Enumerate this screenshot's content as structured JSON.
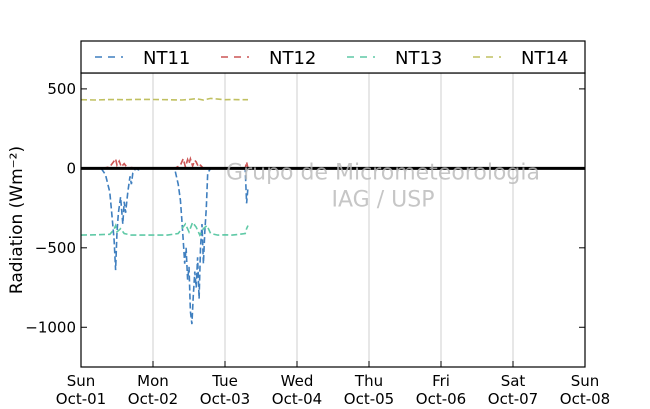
{
  "chart_data": {
    "type": "line",
    "ylabel": "Radiation (Wm⁻²)",
    "xlabel": "",
    "ylim": [
      -1250,
      600
    ],
    "xlim": [
      0,
      7
    ],
    "yticks": [
      500,
      0,
      -500,
      -1000
    ],
    "ytick_labels": [
      "500",
      "0",
      "−500",
      "−1000"
    ],
    "xticks": [
      0,
      1,
      2,
      3,
      4,
      5,
      6,
      7
    ],
    "xtick_labels": [
      [
        "Sun",
        "Oct-01"
      ],
      [
        "Mon",
        "Oct-02"
      ],
      [
        "Tue",
        "Oct-03"
      ],
      [
        "Wed",
        "Oct-04"
      ],
      [
        "Thu",
        "Oct-05"
      ],
      [
        "Fri",
        "Oct-06"
      ],
      [
        "Sat",
        "Oct-07"
      ],
      [
        "Sun",
        "Oct-08"
      ]
    ],
    "grid": "vertical",
    "legend_position": "top",
    "watermark": [
      "Grupo de Micrometeorologia",
      "IAG / USP"
    ],
    "series": [
      {
        "name": "NT11",
        "color": "#3f7fbf",
        "x": [
          0.28,
          0.34,
          0.4,
          0.43,
          0.46,
          0.48,
          0.5,
          0.52,
          0.55,
          0.58,
          0.6,
          0.62,
          0.65,
          0.68,
          0.7,
          0.72,
          0.76,
          0.8,
          0.85,
          0.9,
          1.0,
          1.2,
          1.3,
          1.35,
          1.38,
          1.4,
          1.42,
          1.44,
          1.46,
          1.48,
          1.5,
          1.52,
          1.54,
          1.56,
          1.58,
          1.6,
          1.62,
          1.64,
          1.66,
          1.68,
          1.7,
          1.72,
          1.74,
          1.76,
          1.8,
          1.9,
          2.1,
          2.28,
          2.3,
          2.32
        ],
        "y": [
          0,
          -40,
          -150,
          -300,
          -450,
          -640,
          -400,
          -280,
          -180,
          -350,
          -210,
          -280,
          -150,
          -50,
          -100,
          -30,
          0,
          -10,
          0,
          0,
          0,
          0,
          0,
          -100,
          -200,
          -320,
          -450,
          -600,
          -500,
          -700,
          -620,
          -900,
          -980,
          -800,
          -650,
          -750,
          -560,
          -820,
          -500,
          -350,
          -600,
          -400,
          -250,
          -30,
          0,
          0,
          0,
          0,
          -220,
          -120
        ]
      },
      {
        "name": "NT12",
        "color": "#cc5555",
        "x": [
          0.3,
          0.4,
          0.45,
          0.48,
          0.5,
          0.53,
          0.56,
          0.6,
          0.65,
          0.7,
          0.8,
          1.0,
          1.3,
          1.38,
          1.42,
          1.45,
          1.48,
          1.5,
          1.52,
          1.55,
          1.58,
          1.6,
          1.63,
          1.66,
          1.7,
          1.8,
          2.0,
          2.2,
          2.28,
          2.3,
          2.32
        ],
        "y": [
          0,
          10,
          40,
          60,
          20,
          45,
          10,
          30,
          0,
          5,
          0,
          0,
          0,
          20,
          60,
          10,
          55,
          30,
          60,
          15,
          50,
          40,
          10,
          20,
          0,
          0,
          0,
          0,
          0,
          40,
          0
        ]
      },
      {
        "name": "NT13",
        "color": "#5fc9a6",
        "x": [
          0.0,
          0.2,
          0.4,
          0.45,
          0.48,
          0.5,
          0.55,
          0.6,
          0.7,
          0.8,
          1.0,
          1.2,
          1.35,
          1.4,
          1.45,
          1.5,
          1.55,
          1.6,
          1.65,
          1.7,
          1.75,
          1.8,
          1.9,
          2.0,
          2.1,
          2.2,
          2.28,
          2.3,
          2.32
        ],
        "y": [
          -420,
          -418,
          -415,
          -390,
          -360,
          -400,
          -380,
          -410,
          -420,
          -420,
          -420,
          -420,
          -410,
          -380,
          -350,
          -400,
          -340,
          -370,
          -420,
          -380,
          -360,
          -410,
          -420,
          -418,
          -420,
          -415,
          -410,
          -380,
          -360
        ]
      },
      {
        "name": "NT14",
        "color": "#c0c060",
        "x": [
          0.0,
          0.2,
          0.4,
          0.6,
          0.8,
          1.0,
          1.2,
          1.4,
          1.5,
          1.6,
          1.7,
          1.8,
          1.9,
          2.0,
          2.1,
          2.2,
          2.32
        ],
        "y": [
          432,
          430,
          433,
          432,
          434,
          433,
          432,
          430,
          433,
          438,
          430,
          440,
          436,
          432,
          433,
          432,
          432
        ]
      }
    ]
  }
}
